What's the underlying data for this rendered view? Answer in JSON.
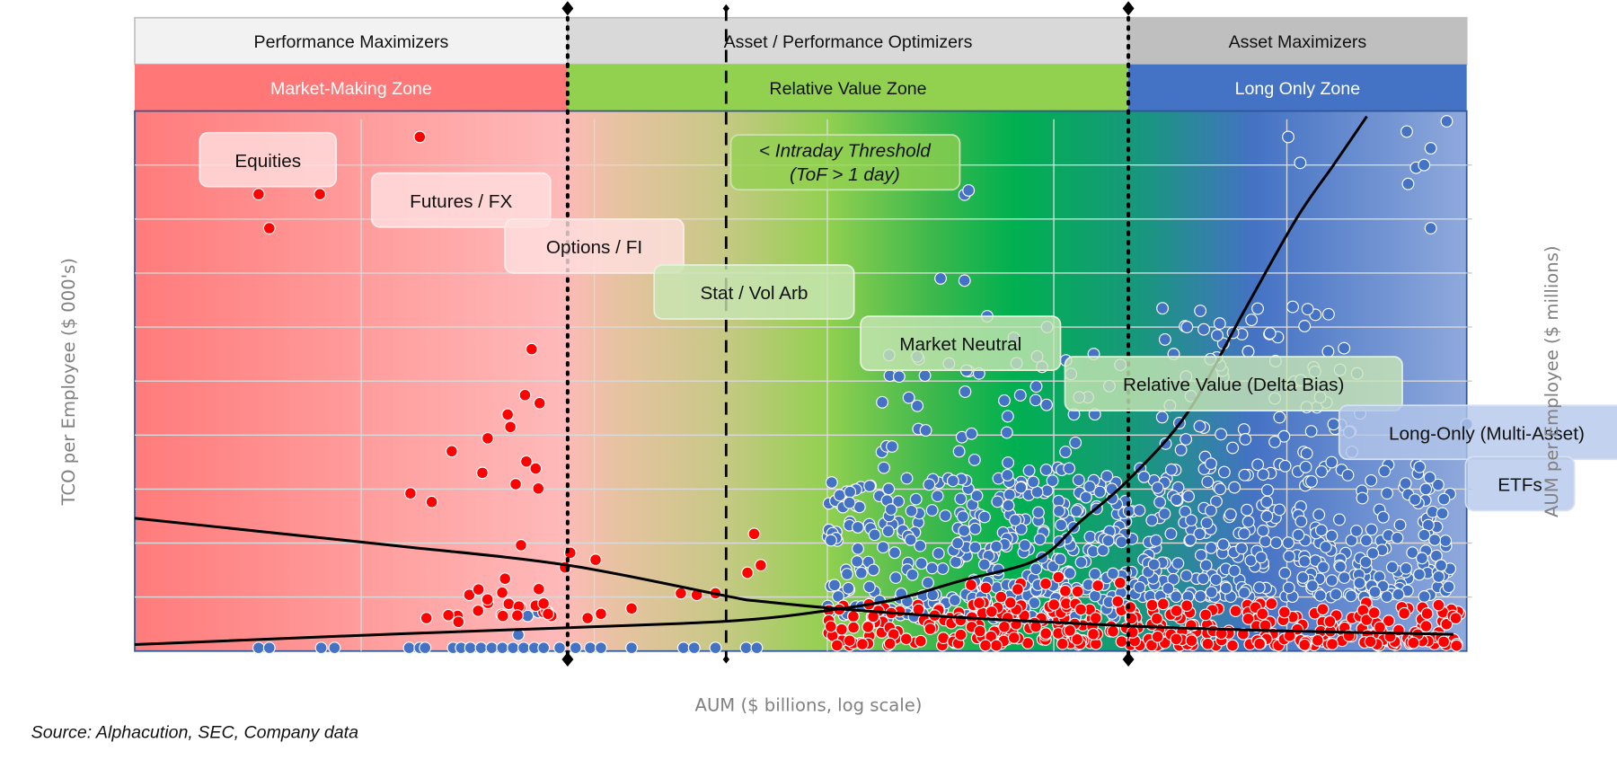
{
  "chart_data": {
    "type": "scatter",
    "title": "",
    "xlabel": "AUM ($ billions, log scale)",
    "ylabel": "TCO per Employee ($ 000's)",
    "y2label": "AUM per Employee ($ millions)",
    "source": "Source: Alphacution, SEC, Company data",
    "xlim": [
      0,
      100
    ],
    "ylim": [
      0,
      100
    ],
    "grid": true,
    "units_note": "relative index units (no tick labels shown)",
    "category_bands": [
      {
        "label": "Performance Maximizers",
        "x_from": 0,
        "x_to": 32.5,
        "color": "#f2f2f2"
      },
      {
        "label": "Asset / Performance Optimizers",
        "x_from": 32.5,
        "x_to": 74.6,
        "color": "#d9d9d9"
      },
      {
        "label": "Asset Maximizers",
        "x_from": 74.6,
        "x_to": 100,
        "color": "#bfbfbf"
      }
    ],
    "zones": [
      {
        "label": "Market-Making Zone",
        "x_from": 0,
        "x_to": 32.5,
        "color": "#ff7777",
        "text_color": "#ffffff"
      },
      {
        "label": "Relative Value Zone",
        "x_from": 32.5,
        "x_to": 74.6,
        "color": "#92d050",
        "text_color": "#111111"
      },
      {
        "label": "Long Only Zone",
        "x_from": 74.6,
        "x_to": 100,
        "color": "#4472c4",
        "text_color": "#ffffff"
      }
    ],
    "thresholds": [
      {
        "name": "market-making-boundary",
        "x": 32.5,
        "style": "dotted"
      },
      {
        "name": "intraday-threshold",
        "x": 44.4,
        "style": "dashed"
      },
      {
        "name": "long-only-boundary",
        "x": 74.6,
        "style": "dotted"
      }
    ],
    "annotations": [
      {
        "text": "Equities",
        "x": 10,
        "y": 91,
        "style": "pink"
      },
      {
        "text": "Futures / FX",
        "x": 24.5,
        "y": 83.5,
        "style": "pink"
      },
      {
        "text": "Options / FI",
        "x": 34.5,
        "y": 75,
        "style": "pink"
      },
      {
        "text": "Stat / Vol Arb",
        "x": 46.5,
        "y": 66.5,
        "style": "green"
      },
      {
        "text": "Market Neutral",
        "x": 62,
        "y": 57,
        "style": "green"
      },
      {
        "text": "Relative Value (Delta Bias)",
        "x": 82.5,
        "y": 49.5,
        "style": "green"
      },
      {
        "text": "Long-Only (Multi-Asset)",
        "x": 101.5,
        "y": 40.5,
        "style": "blue"
      },
      {
        "text": "ETFs",
        "x": 104,
        "y": 31,
        "style": "blue"
      }
    ],
    "threshold_note": {
      "line1": "< Intraday Threshold",
      "line2": "(ToF > 1 day)"
    },
    "series": [
      {
        "name": "TCO per Employee",
        "color": "#ff0000",
        "points": [
          [
            21.4,
            95.2
          ],
          [
            9.3,
            84.6
          ],
          [
            13.9,
            84.6
          ],
          [
            10.1,
            78.3
          ],
          [
            29.8,
            55.9
          ],
          [
            29.3,
            47.4
          ],
          [
            30.4,
            45.9
          ],
          [
            28,
            43.8
          ],
          [
            28.2,
            41.5
          ],
          [
            26.5,
            39.4
          ],
          [
            23.8,
            37
          ],
          [
            29.4,
            35.1
          ],
          [
            26.1,
            33
          ],
          [
            30.1,
            33.8
          ],
          [
            28.6,
            30.9
          ],
          [
            30.3,
            30.1
          ],
          [
            20.7,
            29.2
          ],
          [
            22.3,
            27.6
          ],
          [
            29,
            19.6
          ],
          [
            46.5,
            21.7
          ],
          [
            32.7,
            18.2
          ],
          [
            34.6,
            16.9
          ],
          [
            47,
            15.9
          ],
          [
            27.8,
            13.4
          ],
          [
            37.3,
            7.9
          ],
          [
            41,
            10.7
          ],
          [
            42.2,
            10.4
          ],
          [
            43.6,
            10.7
          ],
          [
            35,
            6.9
          ],
          [
            34,
            6.1
          ],
          [
            21.9,
            6.1
          ],
          [
            24.3,
            5.4
          ],
          [
            32.3,
            15.5
          ],
          [
            46,
            14.5
          ]
        ],
        "clusters": [
          {
            "count": 22,
            "x": [
              23,
              31.5
            ],
            "y": [
              6.5,
              11.5
            ]
          },
          {
            "count": 330,
            "x": [
              52,
              99.5
            ],
            "y": [
              1,
              9
            ]
          },
          {
            "count": 40,
            "x": [
              62,
              75
            ],
            "y": [
              2,
              14
            ]
          }
        ]
      },
      {
        "name": "AUM per Employee",
        "color": "#4472c4",
        "points": [
          [
            9.3,
            0.6
          ],
          [
            10.1,
            0.6
          ],
          [
            14,
            0.6
          ],
          [
            15,
            0.6
          ],
          [
            20.6,
            0.6
          ],
          [
            21.4,
            0.6
          ],
          [
            21.8,
            0.6
          ],
          [
            23.9,
            0.6
          ],
          [
            24.5,
            0.6
          ],
          [
            25.2,
            0.6
          ],
          [
            26,
            0.6
          ],
          [
            26.8,
            0.6
          ],
          [
            27.6,
            0.6
          ],
          [
            28.4,
            0.6
          ],
          [
            29.2,
            0.6
          ],
          [
            30,
            0.6
          ],
          [
            30.7,
            0.6
          ],
          [
            31.9,
            0.6
          ],
          [
            33.1,
            0.6
          ],
          [
            34.2,
            0.6
          ],
          [
            35,
            0.6
          ],
          [
            37.3,
            0.6
          ],
          [
            41.2,
            0.6
          ],
          [
            42,
            0.6
          ],
          [
            43.6,
            0.6
          ],
          [
            45.9,
            0.6
          ],
          [
            46.7,
            0.6
          ],
          [
            29.5,
            6.5
          ],
          [
            30.3,
            7.2
          ],
          [
            28.8,
            3
          ],
          [
            62.3,
            84.5
          ],
          [
            62.6,
            85.3
          ],
          [
            60.5,
            69
          ],
          [
            62.3,
            68.6
          ],
          [
            86.6,
            95.2
          ],
          [
            87.5,
            90.4
          ],
          [
            95.5,
            96.2
          ],
          [
            96.2,
            89.5
          ],
          [
            98.5,
            98.1
          ],
          [
            97.3,
            93.1
          ],
          [
            97.3,
            78.3
          ],
          [
            95.6,
            86.5
          ],
          [
            96.8,
            90
          ],
          [
            79,
            60
          ],
          [
            80,
            63
          ],
          [
            78,
            55
          ],
          [
            64,
            62
          ],
          [
            66,
            58
          ],
          [
            68.5,
            60
          ],
          [
            72,
            55
          ],
          [
            74,
            53
          ],
          [
            90,
            42
          ],
          [
            92,
            44
          ],
          [
            89,
            47
          ],
          [
            100,
            42
          ]
        ],
        "clusters": [
          {
            "count": 360,
            "x": [
              52,
              75
            ],
            "y": [
              6,
              32
            ]
          },
          {
            "count": 60,
            "x": [
              56,
              74
            ],
            "y": [
              30,
              55
            ]
          },
          {
            "count": 300,
            "x": [
              75,
              99
            ],
            "y": [
              10,
              35
            ]
          },
          {
            "count": 70,
            "x": [
              77,
              92
            ],
            "y": [
              33,
              65
            ]
          }
        ]
      }
    ],
    "curves": [
      {
        "name": "TCO per Employee trend",
        "color": "#000000",
        "points": [
          [
            0,
            24.6
          ],
          [
            10,
            22
          ],
          [
            20,
            19.4
          ],
          [
            32.5,
            15.9
          ],
          [
            44.4,
            10.2
          ],
          [
            47,
            9.2
          ],
          [
            55,
            7.4
          ],
          [
            65,
            5.8
          ],
          [
            75,
            4.6
          ],
          [
            85,
            3.8
          ],
          [
            99,
            3.1
          ]
        ]
      },
      {
        "name": "AUM per Employee trend",
        "color": "#000000",
        "points": [
          [
            0,
            1.2
          ],
          [
            20,
            3.2
          ],
          [
            40,
            5
          ],
          [
            47,
            6
          ],
          [
            52,
            7.5
          ],
          [
            57,
            9.5
          ],
          [
            62,
            13
          ],
          [
            67.7,
            16.9
          ],
          [
            71,
            24
          ],
          [
            74.6,
            31.7
          ],
          [
            79,
            44
          ],
          [
            83.3,
            63
          ],
          [
            87.2,
            80
          ],
          [
            90,
            90
          ],
          [
            92.5,
            99
          ]
        ]
      }
    ]
  }
}
